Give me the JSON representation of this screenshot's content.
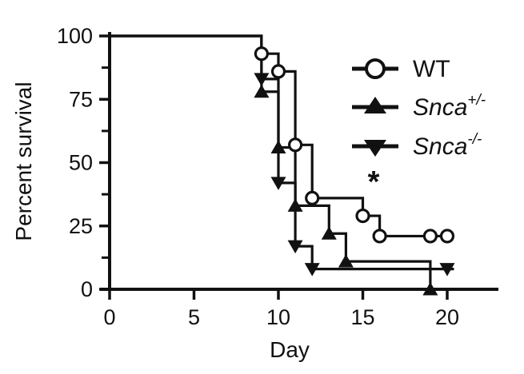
{
  "figure": {
    "ink_color": "#111111",
    "background_color": "#ffffff"
  },
  "chart_data": {
    "type": "line",
    "subtype": "kaplan-meier-step-survival",
    "title": "",
    "xlabel": "Day",
    "ylabel": "Percent survival",
    "xlim": [
      0,
      23
    ],
    "ylim": [
      0,
      100
    ],
    "x_ticks": [
      0,
      5,
      10,
      15,
      20
    ],
    "y_ticks": [
      0,
      25,
      50,
      75,
      100
    ],
    "y_minor_ticks": [
      12.5,
      37.5,
      62.5,
      87.5
    ],
    "grid": false,
    "legend_position": "top-right",
    "annotation": {
      "text": "*",
      "day": 15.6,
      "pct": 45
    },
    "series": [
      {
        "name": "WT",
        "label_base": "WT",
        "label_sup": "",
        "italic": false,
        "marker": "open-circle",
        "color": "#111111",
        "steps": [
          [
            0,
            100
          ],
          [
            9,
            93
          ],
          [
            10,
            86
          ],
          [
            11,
            57
          ],
          [
            12,
            36
          ],
          [
            15,
            29
          ],
          [
            16,
            21
          ]
        ],
        "end_day": 20.4,
        "markers": [
          [
            9,
            93
          ],
          [
            10,
            86
          ],
          [
            11,
            57
          ],
          [
            12,
            36
          ],
          [
            15,
            29
          ],
          [
            16,
            21
          ],
          [
            19,
            21
          ],
          [
            20,
            21
          ]
        ]
      },
      {
        "name": "Snca+/-",
        "label_base": "Snca",
        "label_sup": "+/-",
        "italic": true,
        "marker": "filled-triangle-up",
        "color": "#111111",
        "steps": [
          [
            0,
            100
          ],
          [
            9,
            78
          ],
          [
            10,
            56
          ],
          [
            11,
            33
          ],
          [
            13,
            22
          ],
          [
            14,
            11
          ],
          [
            19,
            0
          ]
        ],
        "end_day": 19,
        "markers": [
          [
            9,
            78
          ],
          [
            10,
            56
          ],
          [
            11,
            33
          ],
          [
            13,
            22
          ],
          [
            14,
            11
          ],
          [
            19,
            0
          ]
        ]
      },
      {
        "name": "Snca-/-",
        "label_base": "Snca",
        "label_sup": "-/-",
        "italic": true,
        "marker": "filled-triangle-down",
        "color": "#111111",
        "steps": [
          [
            0,
            100
          ],
          [
            9,
            83
          ],
          [
            10,
            42
          ],
          [
            11,
            17
          ],
          [
            12,
            8
          ]
        ],
        "end_day": 20.4,
        "markers": [
          [
            9,
            83
          ],
          [
            10,
            42
          ],
          [
            11,
            17
          ],
          [
            12,
            8
          ],
          [
            20,
            8
          ]
        ]
      }
    ]
  }
}
